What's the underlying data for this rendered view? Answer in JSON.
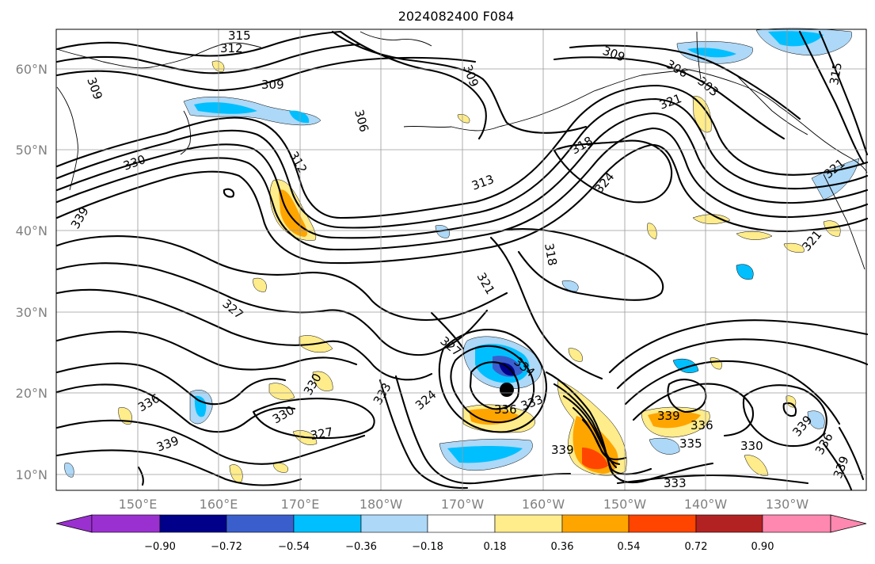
{
  "title": "2024082400 F084",
  "map": {
    "lat_ticks": [
      "10°N",
      "20°N",
      "30°N",
      "40°N",
      "50°N",
      "60°N"
    ],
    "lon_ticks": [
      "150°E",
      "160°E",
      "170°E",
      "180°W",
      "170°W",
      "160°W",
      "150°W",
      "140°W",
      "130°W"
    ],
    "contour_labels": [
      "315",
      "312",
      "309",
      "309",
      "306",
      "309",
      "309",
      "306",
      "303",
      "315",
      "321",
      "318",
      "324",
      "312",
      "330",
      "313",
      "339",
      "318",
      "321",
      "321",
      "327",
      "327",
      "334",
      "330",
      "330",
      "327",
      "336",
      "336",
      "333",
      "333",
      "324",
      "339",
      "339",
      "339",
      "336",
      "335",
      "330",
      "339",
      "336",
      "339",
      "321",
      "333"
    ]
  },
  "colorbar": {
    "ticks": [
      "−0.90",
      "−0.72",
      "−0.54",
      "−0.36",
      "−0.18",
      "0.18",
      "0.36",
      "0.54",
      "0.72",
      "0.90"
    ],
    "colors": [
      "#9b30d0",
      "#00008b",
      "#3a5fcd",
      "#00bfff",
      "#add8f7",
      "#ffffff",
      "#ffec8b",
      "#ffa500",
      "#ff4500",
      "#b22222",
      "#ff88b0"
    ]
  }
}
